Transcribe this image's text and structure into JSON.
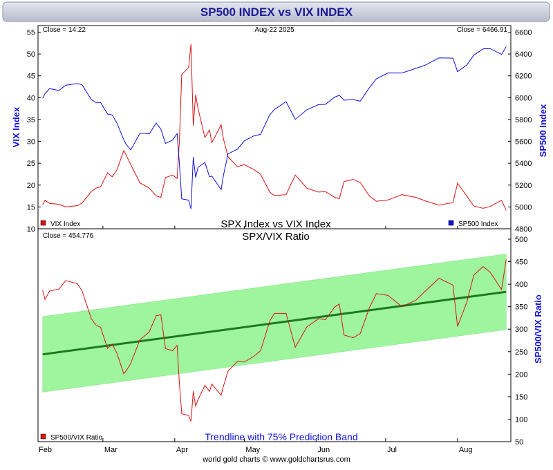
{
  "header": {
    "title": "SP500 INDEX vs VIX INDEX"
  },
  "footer": {
    "credit": "world gold charts © www.goldchartsrus.com"
  },
  "x_axis": {
    "months": [
      "Feb",
      "Mar",
      "Apr",
      "May",
      "Jun",
      "Jul",
      "Aug"
    ]
  },
  "colors": {
    "vix": "#dd1111",
    "spx": "#1111dd",
    "ratio": "#dd1111",
    "trend": "#1a7a1a",
    "band": "#9ef59e",
    "header_bg": "#c8ccd8",
    "title_text": "#1a1a99"
  },
  "chart_data": [
    {
      "type": "line",
      "title": "SPX Index vs VIX Index",
      "date_label": "Aug-22  2025",
      "left_axis": {
        "label": "VIX Index",
        "ylim": [
          10,
          55
        ],
        "ticks": [
          "10",
          "15",
          "20",
          "25",
          "30",
          "35",
          "40",
          "45",
          "50",
          "55"
        ]
      },
      "right_axis": {
        "label": "SP500 Index",
        "ylim": [
          4800,
          6600
        ],
        "ticks": [
          "4800",
          "5000",
          "5200",
          "5400",
          "5600",
          "5800",
          "6000",
          "6200",
          "6400",
          "6600"
        ]
      },
      "series": [
        {
          "name": "VIX Index",
          "axis": "left",
          "close_label": "Close = 14.22",
          "x": [
            "2025-02-03",
            "2025-02-04",
            "2025-02-06",
            "2025-02-10",
            "2025-02-13",
            "2025-02-18",
            "2025-02-20",
            "2025-02-24",
            "2025-02-26",
            "2025-02-28",
            "2025-03-03",
            "2025-03-05",
            "2025-03-07",
            "2025-03-10",
            "2025-03-11",
            "2025-03-13",
            "2025-03-17",
            "2025-03-19",
            "2025-03-21",
            "2025-03-24",
            "2025-03-26",
            "2025-03-28",
            "2025-03-31",
            "2025-04-02",
            "2025-04-03",
            "2025-04-04",
            "2025-04-07",
            "2025-04-08",
            "2025-04-09",
            "2025-04-10",
            "2025-04-11",
            "2025-04-14",
            "2025-04-16",
            "2025-04-17",
            "2025-04-21",
            "2025-04-22",
            "2025-04-24",
            "2025-04-28",
            "2025-05-01",
            "2025-05-05",
            "2025-05-08",
            "2025-05-12",
            "2025-05-14",
            "2025-05-19",
            "2025-05-23",
            "2025-05-28",
            "2025-06-02",
            "2025-06-05",
            "2025-06-09",
            "2025-06-11",
            "2025-06-13",
            "2025-06-17",
            "2025-06-20",
            "2025-06-24",
            "2025-06-27",
            "2025-07-02",
            "2025-07-08",
            "2025-07-14",
            "2025-07-18",
            "2025-07-24",
            "2025-07-30",
            "2025-08-01",
            "2025-08-05",
            "2025-08-08",
            "2025-08-12",
            "2025-08-15",
            "2025-08-20",
            "2025-08-22"
          ],
          "values": [
            15.5,
            16.5,
            15.8,
            15.6,
            15.0,
            15.3,
            15.9,
            18.5,
            19.3,
            19.6,
            22.8,
            21.9,
            23.4,
            27.9,
            26.9,
            24.7,
            20.5,
            19.9,
            19.3,
            17.5,
            17.2,
            21.7,
            22.3,
            21.5,
            30.0,
            45.3,
            46.9,
            52.3,
            33.6,
            40.7,
            37.6,
            30.9,
            32.6,
            29.7,
            33.8,
            30.6,
            26.5,
            24.2,
            24.7,
            23.6,
            22.5,
            18.4,
            17.6,
            17.8,
            22.3,
            19.3,
            18.4,
            18.5,
            17.2,
            16.9,
            20.8,
            21.3,
            20.6,
            17.5,
            16.3,
            16.6,
            17.8,
            17.2,
            16.4,
            15.4,
            16.0,
            20.4,
            17.5,
            15.2,
            14.7,
            15.1,
            16.5,
            14.22
          ]
        },
        {
          "name": "SP500 Index",
          "axis": "right",
          "close_label": "Close = 6466.91",
          "x": [
            "2025-02-03",
            "2025-02-04",
            "2025-02-06",
            "2025-02-10",
            "2025-02-13",
            "2025-02-18",
            "2025-02-20",
            "2025-02-24",
            "2025-02-26",
            "2025-02-28",
            "2025-03-03",
            "2025-03-05",
            "2025-03-07",
            "2025-03-10",
            "2025-03-11",
            "2025-03-13",
            "2025-03-17",
            "2025-03-19",
            "2025-03-21",
            "2025-03-24",
            "2025-03-26",
            "2025-03-28",
            "2025-03-31",
            "2025-04-02",
            "2025-04-03",
            "2025-04-04",
            "2025-04-07",
            "2025-04-08",
            "2025-04-09",
            "2025-04-10",
            "2025-04-11",
            "2025-04-14",
            "2025-04-16",
            "2025-04-17",
            "2025-04-21",
            "2025-04-22",
            "2025-04-24",
            "2025-04-28",
            "2025-05-01",
            "2025-05-05",
            "2025-05-08",
            "2025-05-12",
            "2025-05-14",
            "2025-05-19",
            "2025-05-23",
            "2025-05-28",
            "2025-06-02",
            "2025-06-05",
            "2025-06-09",
            "2025-06-11",
            "2025-06-13",
            "2025-06-17",
            "2025-06-20",
            "2025-06-24",
            "2025-06-27",
            "2025-07-02",
            "2025-07-08",
            "2025-07-14",
            "2025-07-18",
            "2025-07-24",
            "2025-07-30",
            "2025-08-01",
            "2025-08-05",
            "2025-08-08",
            "2025-08-12",
            "2025-08-15",
            "2025-08-20",
            "2025-08-22"
          ],
          "values": [
            5994,
            6037,
            6083,
            6066,
            6115,
            6129,
            6118,
            5983,
            5956,
            5955,
            5850,
            5842,
            5770,
            5615,
            5573,
            5522,
            5675,
            5675,
            5668,
            5768,
            5712,
            5581,
            5612,
            5671,
            5397,
            5074,
            5062,
            4982,
            5457,
            5268,
            5363,
            5406,
            5276,
            5283,
            5158,
            5288,
            5485,
            5529,
            5604,
            5650,
            5664,
            5844,
            5892,
            5964,
            5802,
            5889,
            5936,
            5939,
            6005,
            6022,
            5977,
            5983,
            5968,
            6092,
            6173,
            6227,
            6226,
            6268,
            6297,
            6364,
            6362,
            6238,
            6299,
            6389,
            6446,
            6450,
            6396,
            6466.91
          ]
        }
      ]
    },
    {
      "type": "line",
      "title": "SPX/VIX Ratio",
      "close_label": "Close = 454.776",
      "right_axis": {
        "label": "SP500/VIX Ratio",
        "ylim": [
          50,
          500
        ],
        "ticks": [
          "50",
          "100",
          "150",
          "200",
          "250",
          "300",
          "350",
          "400",
          "450",
          "500"
        ]
      },
      "series": [
        {
          "name": "SP500/VIX Ratio",
          "x": [
            "2025-02-03",
            "2025-02-04",
            "2025-02-06",
            "2025-02-10",
            "2025-02-13",
            "2025-02-18",
            "2025-02-20",
            "2025-02-24",
            "2025-02-26",
            "2025-02-28",
            "2025-03-03",
            "2025-03-05",
            "2025-03-07",
            "2025-03-10",
            "2025-03-11",
            "2025-03-13",
            "2025-03-17",
            "2025-03-19",
            "2025-03-21",
            "2025-03-24",
            "2025-03-26",
            "2025-03-28",
            "2025-03-31",
            "2025-04-02",
            "2025-04-03",
            "2025-04-04",
            "2025-04-07",
            "2025-04-08",
            "2025-04-09",
            "2025-04-10",
            "2025-04-11",
            "2025-04-14",
            "2025-04-16",
            "2025-04-17",
            "2025-04-21",
            "2025-04-22",
            "2025-04-24",
            "2025-04-28",
            "2025-05-01",
            "2025-05-05",
            "2025-05-08",
            "2025-05-12",
            "2025-05-14",
            "2025-05-19",
            "2025-05-23",
            "2025-05-28",
            "2025-06-02",
            "2025-06-05",
            "2025-06-09",
            "2025-06-11",
            "2025-06-13",
            "2025-06-17",
            "2025-06-20",
            "2025-06-24",
            "2025-06-27",
            "2025-07-02",
            "2025-07-08",
            "2025-07-14",
            "2025-07-18",
            "2025-07-24",
            "2025-07-30",
            "2025-08-01",
            "2025-08-05",
            "2025-08-08",
            "2025-08-12",
            "2025-08-15",
            "2025-08-20",
            "2025-08-22"
          ],
          "values": [
            387,
            366,
            385,
            389,
            408,
            401,
            385,
            323,
            309,
            304,
            257,
            267,
            247,
            201,
            207,
            224,
            277,
            285,
            294,
            330,
            332,
            257,
            252,
            264,
            180,
            112,
            108,
            95,
            162,
            129,
            143,
            175,
            162,
            178,
            153,
            173,
            207,
            228,
            227,
            239,
            252,
            318,
            335,
            335,
            260,
            305,
            323,
            321,
            349,
            356,
            287,
            281,
            290,
            348,
            379,
            375,
            350,
            364,
            384,
            413,
            398,
            306,
            360,
            420,
            439,
            427,
            388,
            454.776
          ]
        }
      ],
      "trendline": {
        "name": "Trendline with 75% Prediction Band",
        "x": [
          "2025-02-03",
          "2025-08-22"
        ],
        "values": [
          244,
          383
        ],
        "band_halfwidth": 84
      }
    }
  ]
}
